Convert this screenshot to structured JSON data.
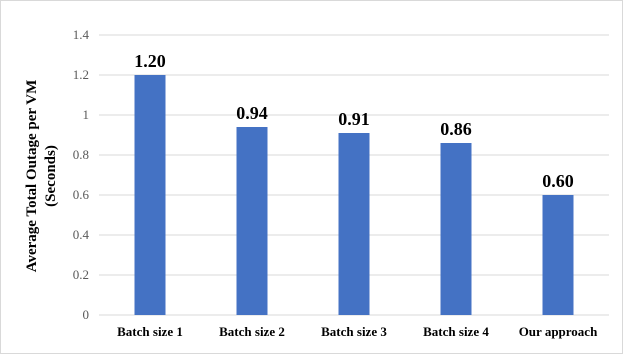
{
  "chart_data": {
    "type": "bar",
    "title": "",
    "xlabel": "",
    "ylabel_line1": "Average Total Outage per VM",
    "ylabel_line2": "(Seconds)",
    "categories": [
      "Batch size 1",
      "Batch size 2",
      "Batch size 3",
      "Batch size 4",
      "Our approach"
    ],
    "values": [
      1.2,
      0.94,
      0.91,
      0.86,
      0.6
    ],
    "data_labels": [
      "1.20",
      "0.94",
      "0.91",
      "0.86",
      "0.60"
    ],
    "ylim": [
      0,
      1.4
    ],
    "yticks": [
      "0",
      "0.2",
      "0.4",
      "0.6",
      "0.8",
      "1",
      "1.2",
      "1.4"
    ],
    "grid": true,
    "bar_color": "#4472C4",
    "grid_color": "#d9d9d9"
  }
}
